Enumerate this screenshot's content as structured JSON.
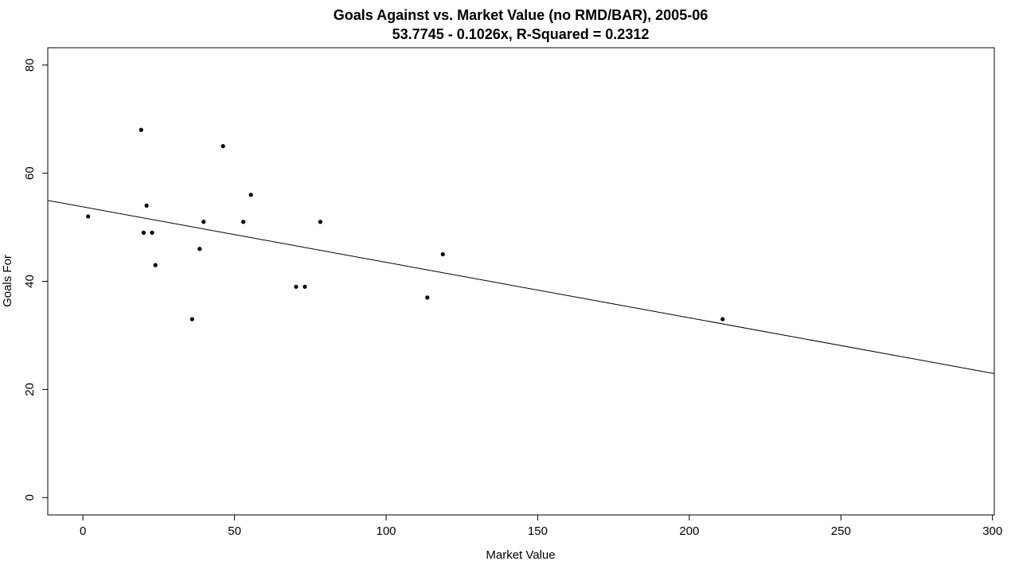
{
  "chart_data": {
    "type": "scatter",
    "title": "Goals Against vs. Market Value (no RMD/BAR), 2005-06",
    "subtitle": "53.7745 - 0.1026x, R-Squared = 0.2312",
    "xlabel": "Market Value",
    "ylabel": "Goals For",
    "xlim": [
      -11.6,
      300.6
    ],
    "ylim": [
      -3.2,
      83.2
    ],
    "x_ticks": [
      0,
      50,
      100,
      150,
      200,
      250,
      300
    ],
    "y_ticks": [
      0,
      20,
      40,
      60,
      80
    ],
    "x_tick_labels": [
      "0",
      "50",
      "100",
      "150",
      "200",
      "250",
      "300"
    ],
    "y_tick_labels": [
      "0",
      "20",
      "40",
      "60",
      "80"
    ],
    "grid": false,
    "points": [
      {
        "x": 1.7,
        "y": 52
      },
      {
        "x": 19.2,
        "y": 68
      },
      {
        "x": 20.0,
        "y": 49
      },
      {
        "x": 21.0,
        "y": 54
      },
      {
        "x": 22.8,
        "y": 49
      },
      {
        "x": 23.9,
        "y": 43
      },
      {
        "x": 36.0,
        "y": 33
      },
      {
        "x": 38.5,
        "y": 46
      },
      {
        "x": 39.8,
        "y": 51
      },
      {
        "x": 46.2,
        "y": 65
      },
      {
        "x": 52.9,
        "y": 51
      },
      {
        "x": 55.4,
        "y": 56
      },
      {
        "x": 70.3,
        "y": 39
      },
      {
        "x": 73.2,
        "y": 39
      },
      {
        "x": 78.3,
        "y": 51
      },
      {
        "x": 113.6,
        "y": 37
      },
      {
        "x": 118.7,
        "y": 45
      },
      {
        "x": 211.0,
        "y": 33
      }
    ],
    "fit_line": {
      "intercept": 53.7745,
      "slope": -0.1026
    }
  }
}
